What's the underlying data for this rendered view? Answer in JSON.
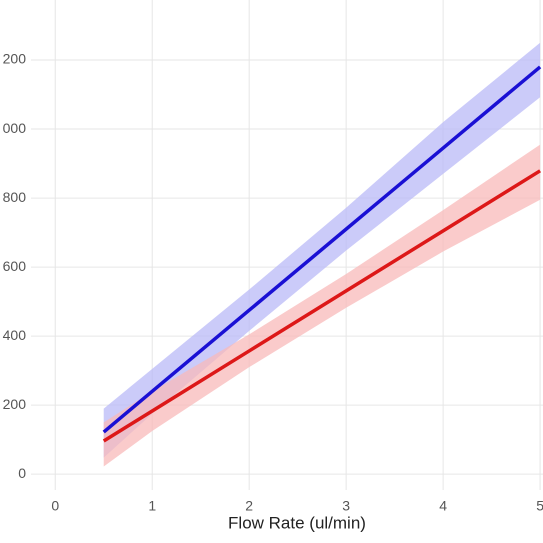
{
  "chart_data": {
    "type": "line",
    "x_label": "Flow Rate (ul/min)",
    "x": [
      0.5,
      1,
      2,
      3,
      4,
      5
    ],
    "series": [
      {
        "color": "#1a10d4",
        "band_color": "#b9b9f7",
        "values": [
          122,
          240,
          475,
          710,
          945,
          1180
        ],
        "lower": [
          48,
          175,
          415,
          648,
          870,
          1092
        ],
        "upper": [
          190,
          305,
          535,
          772,
          1020,
          1250
        ]
      },
      {
        "color": "#dd1818",
        "band_color": "#f8baba",
        "values": [
          96,
          183,
          357,
          531,
          705,
          879
        ],
        "lower": [
          22,
          125,
          310,
          482,
          645,
          795
        ],
        "upper": [
          150,
          240,
          405,
          580,
          765,
          955
        ]
      }
    ],
    "xlim": [
      -0.25,
      5.03
    ],
    "ylim": [
      -46,
      1374
    ],
    "xticks": [
      0,
      1,
      2,
      3,
      4,
      5
    ],
    "yticks": [
      0,
      200,
      400,
      600,
      800,
      {
        "value": 1000,
        "label": "000"
      },
      {
        "value": 1200,
        "label": "200"
      }
    ],
    "grid": true
  }
}
